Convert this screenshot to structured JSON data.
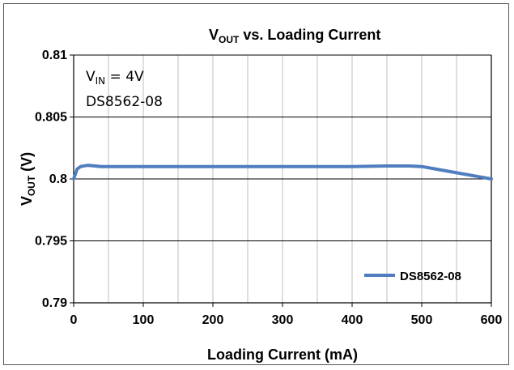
{
  "chart_data": {
    "type": "line",
    "title": {
      "main": "V",
      "sub": "OUT",
      "rest": " vs. Loading Current"
    },
    "xlabel": "Loading Current (mA)",
    "ylabel": {
      "main": "V",
      "sub": "OUT",
      "rest": " (V)"
    },
    "xlim": [
      0,
      600
    ],
    "ylim": [
      0.79,
      0.81
    ],
    "x_ticks": [
      0,
      100,
      200,
      300,
      400,
      500,
      600
    ],
    "x_tick_labels": [
      "0",
      "100",
      "200",
      "300",
      "400",
      "500",
      "600"
    ],
    "y_ticks": [
      0.79,
      0.795,
      0.8,
      0.805,
      0.81
    ],
    "y_tick_labels": [
      "0.79",
      "0.795",
      "0.8",
      "0.805",
      "0.81"
    ],
    "x_minor_gridlines": [
      50,
      150,
      250,
      350,
      450,
      550
    ],
    "grid": true,
    "legend_position": "bottom-right",
    "annotations": {
      "vin": {
        "main": "V",
        "sub": "IN",
        "rest": " = 4V"
      },
      "part": "DS8562-08"
    },
    "series": [
      {
        "name": "DS8562-08",
        "color": "#4F7DBF",
        "x": [
          0,
          5,
          10,
          20,
          40,
          100,
          200,
          300,
          400,
          450,
          480,
          500,
          520,
          550,
          580,
          600
        ],
        "y": [
          0.8,
          0.8008,
          0.801,
          0.8011,
          0.801,
          0.801,
          0.801,
          0.801,
          0.801,
          0.80105,
          0.80105,
          0.801,
          0.8008,
          0.8005,
          0.8002,
          0.8
        ]
      }
    ]
  }
}
